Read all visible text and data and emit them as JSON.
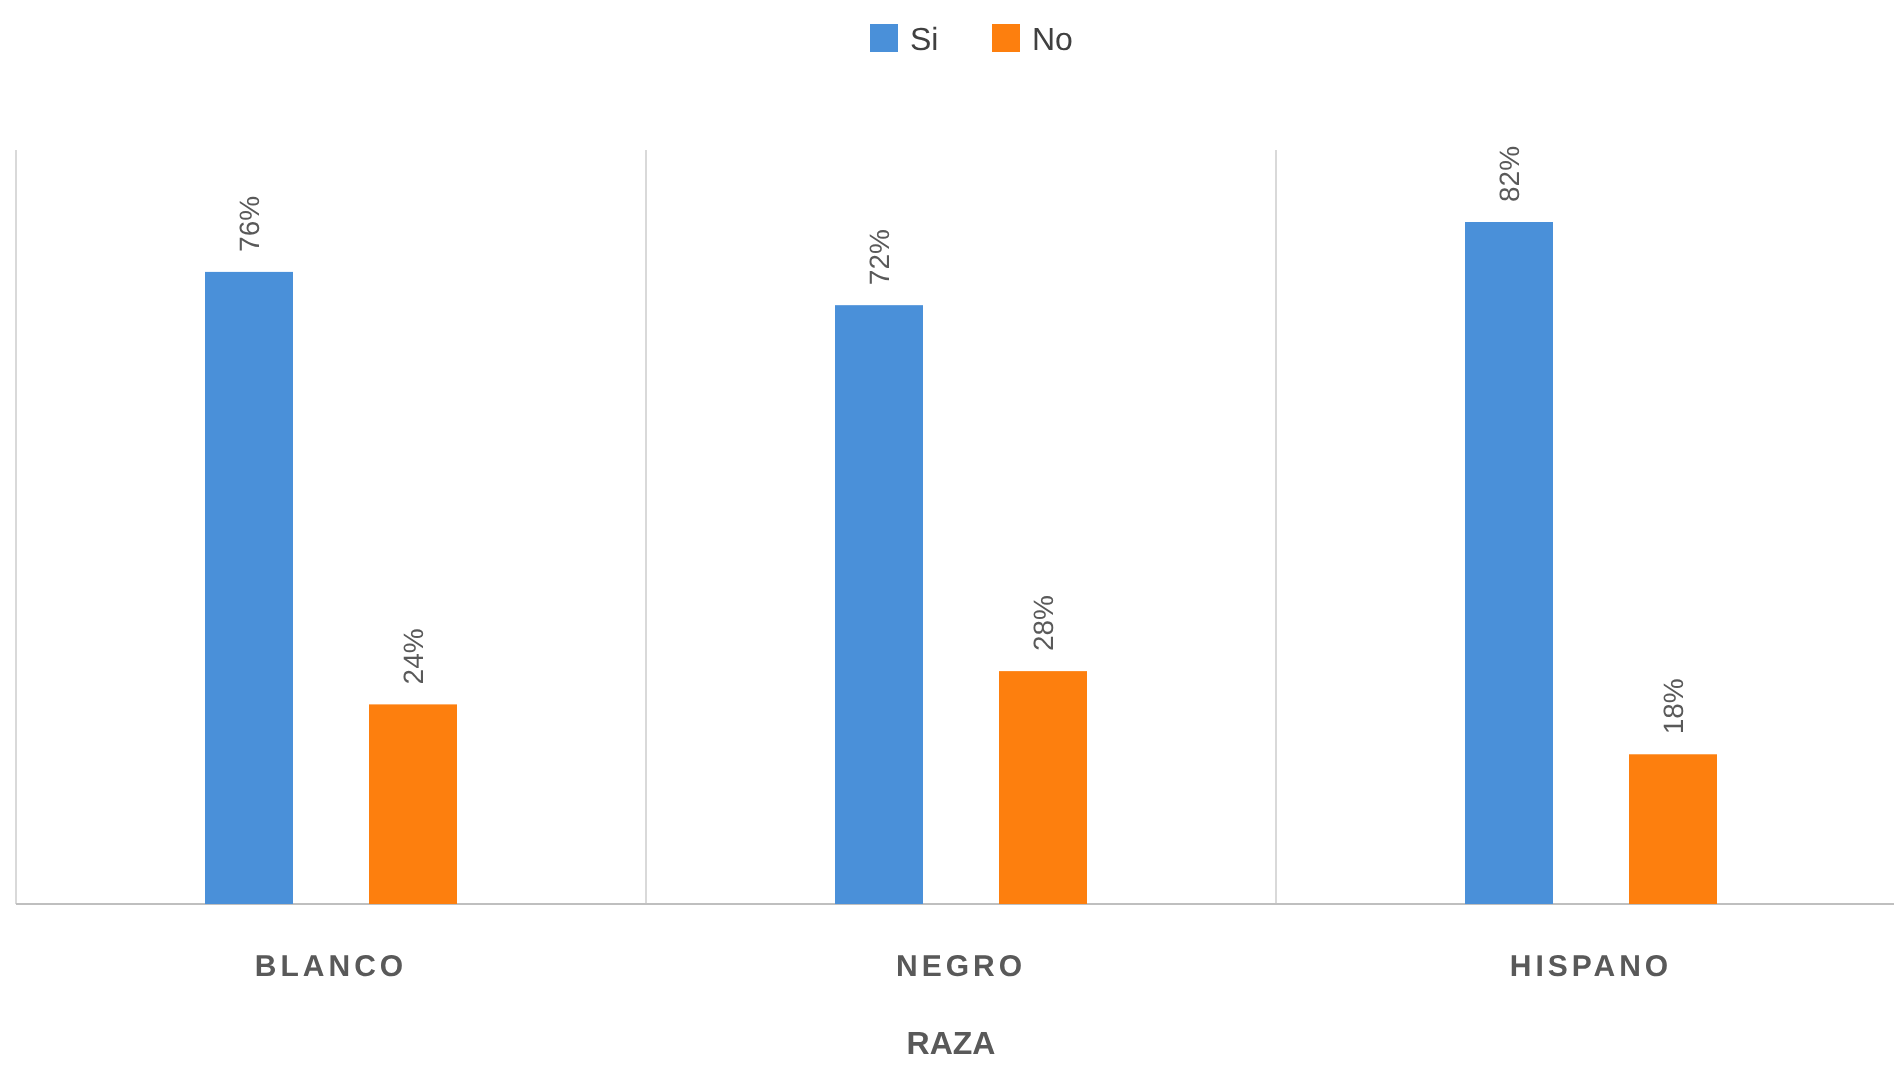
{
  "chart_data": {
    "type": "bar",
    "xlabel": "RAZA",
    "categories": [
      "BLANCO",
      "NEGRO",
      "HISPANO"
    ],
    "series": [
      {
        "name": "Si",
        "color": "#4a90d9",
        "values": [
          76,
          72,
          82
        ],
        "value_labels": [
          "76%",
          "72%",
          "82%"
        ]
      },
      {
        "name": "No",
        "color": "#fd7f0e",
        "values": [
          24,
          28,
          18
        ],
        "value_labels": [
          "24%",
          "28%",
          "18%"
        ]
      }
    ],
    "grid": "x",
    "legend": "top"
  }
}
